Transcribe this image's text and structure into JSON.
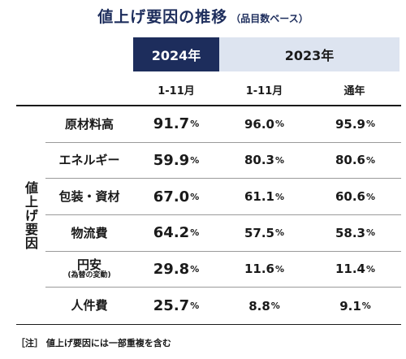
{
  "title": "値上げ要因の推移",
  "subtitle": "（品目数ベース）",
  "header": {
    "year_current": "2024年",
    "year_previous": "2023年",
    "period_current": "1-11月",
    "period_previous": "1-11月",
    "period_full_year": "通年"
  },
  "side_label": "値上げ要因",
  "percent_sign": "%",
  "rows": [
    {
      "label": "原材料高",
      "note": "",
      "v2024": "91.7",
      "v2023": "96.0",
      "v2023_full": "95.9"
    },
    {
      "label": "エネルギー",
      "note": "",
      "v2024": "59.9",
      "v2023": "80.3",
      "v2023_full": "80.6"
    },
    {
      "label": "包装・資材",
      "note": "",
      "v2024": "67.0",
      "v2023": "61.1",
      "v2023_full": "60.6"
    },
    {
      "label": "物流費",
      "note": "",
      "v2024": "64.2",
      "v2023": "57.5",
      "v2023_full": "58.3"
    },
    {
      "label": "円安",
      "note": "(為替の変動)",
      "v2024": "29.8",
      "v2023": "11.6",
      "v2023_full": "11.4"
    },
    {
      "label": "人件費",
      "note": "",
      "v2024": "25.7",
      "v2023": "8.8",
      "v2023_full": "9.1"
    }
  ],
  "footnote": "［注］ 値上げ要因には一部重複を含む",
  "colors": {
    "navy": "#1d2d5c",
    "light_blue": "#dde4f0"
  }
}
